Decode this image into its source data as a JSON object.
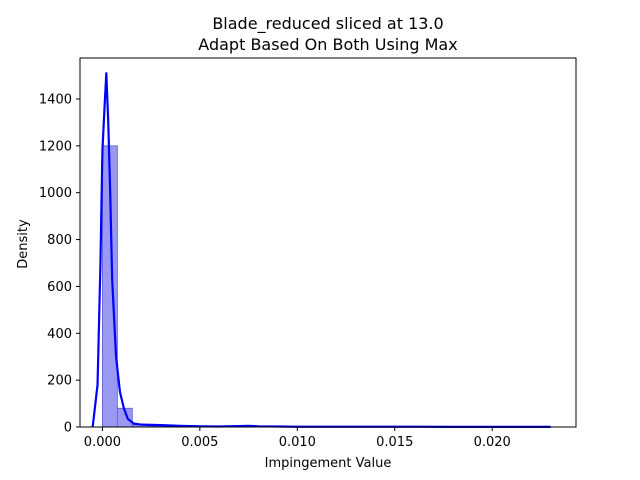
{
  "chart_data": {
    "type": "bar",
    "title": "Blade_reduced sliced at 13.0",
    "subtitle": "Adapt Based On Both   Using Max",
    "xlabel": "Impingement Value",
    "ylabel": "Density",
    "xlim": [
      -0.00115,
      0.0243
    ],
    "ylim": [
      0,
      1575
    ],
    "x_ticks": [
      0.0,
      0.005,
      0.01,
      0.015,
      0.02
    ],
    "x_tick_labels": [
      "0.000",
      "0.005",
      "0.010",
      "0.015",
      "0.020"
    ],
    "y_ticks": [
      0,
      200,
      400,
      600,
      800,
      1000,
      1200,
      1400
    ],
    "y_tick_labels": [
      "0",
      "200",
      "400",
      "600",
      "800",
      "1000",
      "1200",
      "1400"
    ],
    "colors": {
      "bar_fill": "#9999f2",
      "bar_edge": "#5b5bd6",
      "kde": "#0000ff"
    },
    "histogram": {
      "bin_width": 0.000767,
      "bin_starts": [
        -0.0,
        0.000767,
        0.001534,
        0.002301,
        0.003068,
        0.003835,
        0.004602,
        0.005369,
        0.006136,
        0.006903,
        0.00767,
        0.008437,
        0.009204,
        0.009971,
        0.010738,
        0.011505,
        0.012272,
        0.013039,
        0.013806,
        0.014573,
        0.01534,
        0.016107,
        0.016874,
        0.017641,
        0.018408,
        0.019175,
        0.019942,
        0.020709,
        0.021476,
        0.022243
      ],
      "values": [
        1200,
        80,
        9,
        4,
        3,
        2,
        2,
        1.5,
        1.5,
        1.5,
        1.5,
        1,
        1,
        1,
        1,
        1,
        1,
        0.5,
        0.5,
        0.5,
        0.5,
        0.5,
        0.5,
        0.5,
        0.5,
        0.5,
        0.5,
        0.5,
        0.5,
        0.5
      ]
    },
    "kde": {
      "x": [
        -0.0005,
        -0.00025,
        -0.0001,
        0.0,
        0.0001,
        0.0002,
        0.0003,
        0.0004,
        0.0005,
        0.0007,
        0.0009,
        0.0011,
        0.0013,
        0.0016,
        0.002,
        0.003,
        0.004,
        0.005,
        0.006,
        0.007,
        0.0075,
        0.008,
        0.009,
        0.01,
        0.012,
        0.014,
        0.016,
        0.018,
        0.02,
        0.022,
        0.023
      ],
      "y": [
        0,
        180,
        700,
        1180,
        1350,
        1510,
        1300,
        1000,
        630,
        300,
        150,
        80,
        35,
        15,
        10,
        8,
        5,
        3,
        2,
        4,
        5,
        3,
        2,
        1,
        1,
        1,
        1,
        0.5,
        0.5,
        0.5,
        0.5
      ]
    }
  }
}
